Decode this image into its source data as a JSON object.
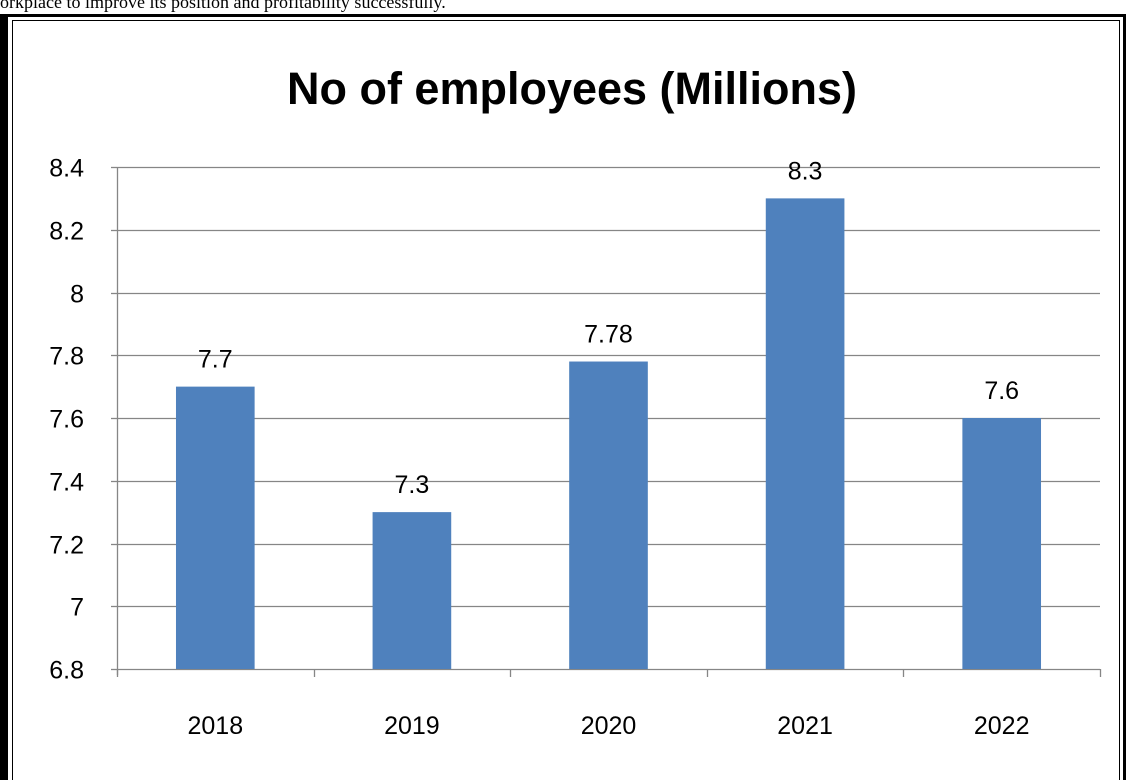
{
  "document": {
    "top_text": "orkplace to improve its position and profitability successfully."
  },
  "colors": {
    "bar": "#4f81bd",
    "gridline": "#868686",
    "axis": "#868686",
    "text": "#000000",
    "frame": "#000000"
  },
  "chart_data": {
    "type": "bar",
    "title": "No of employees (Millions)",
    "xlabel": "",
    "ylabel": "",
    "categories": [
      "2018",
      "2019",
      "2020",
      "2021",
      "2022"
    ],
    "values": [
      7.7,
      7.3,
      7.78,
      8.3,
      7.6
    ],
    "value_labels": [
      "7.7",
      "7.3",
      "7.78",
      "8.3",
      "7.6"
    ],
    "ylim": [
      6.8,
      8.4
    ],
    "yticks": [
      6.8,
      7,
      7.2,
      7.4,
      7.6,
      7.8,
      8,
      8.2,
      8.4
    ],
    "ytick_labels": [
      "6.8",
      "7",
      "7.2",
      "7.4",
      "7.6",
      "7.8",
      "8",
      "8.2",
      "8.4"
    ],
    "grid": true,
    "legend": "none"
  }
}
